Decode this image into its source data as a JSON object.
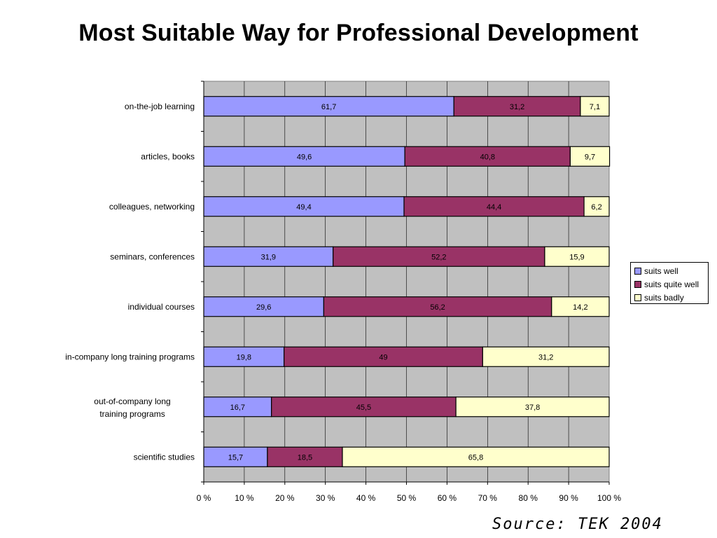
{
  "chart_data": {
    "type": "bar",
    "orientation": "horizontal",
    "stacked": true,
    "title": "Most Suitable Way for Professional Development",
    "categories": [
      "on-the-job learning",
      "articles, books",
      "colleagues, networking",
      "seminars, conferences",
      "individual courses",
      "in-company long training programs",
      "out-of-company long training programs",
      "scientific studies"
    ],
    "series": [
      {
        "name": "suits well",
        "color": "#9999FF",
        "values": [
          61.7,
          49.6,
          49.4,
          31.9,
          29.6,
          19.8,
          16.7,
          15.7
        ],
        "labels": [
          "61,7",
          "49,6",
          "49,4",
          "31,9",
          "29,6",
          "19,8",
          "16,7",
          "15,7"
        ]
      },
      {
        "name": "suits quite well",
        "color": "#993366",
        "values": [
          31.2,
          40.8,
          44.4,
          52.2,
          56.2,
          49,
          45.5,
          18.5
        ],
        "labels": [
          "31,2",
          "40,8",
          "44,4",
          "52,2",
          "56,2",
          "49",
          "45,5",
          "18,5"
        ]
      },
      {
        "name": "suits badly",
        "color": "#FFFFCC",
        "values": [
          7.1,
          9.7,
          6.2,
          15.9,
          14.2,
          31.2,
          37.8,
          65.8
        ],
        "labels": [
          "7,1",
          "9,7",
          "6,2",
          "15,9",
          "14,2",
          "31,2",
          "37,8",
          "65,8"
        ]
      }
    ],
    "xlim": [
      0,
      100
    ],
    "xticks": [
      "0 %",
      "10 %",
      "20 %",
      "30 %",
      "40 %",
      "50 %",
      "60 %",
      "70 %",
      "80 %",
      "90 %",
      "100 %"
    ],
    "grid": true,
    "plot_background": "#C0C0C0",
    "legend_position": "right"
  },
  "footer": {
    "source": "Source: TEK 2004"
  }
}
